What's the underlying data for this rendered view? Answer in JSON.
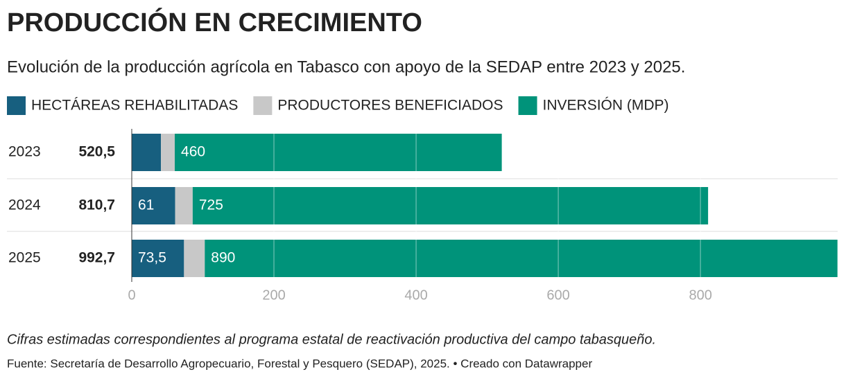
{
  "chart_data": {
    "type": "stacked-bar-horizontal",
    "title": "PRODUCCIÓN EN CRECIMIENTO",
    "subtitle": "Evolución de la producción agrícola en Tabasco con apoyo de la SEDAP entre 2023 y 2025.",
    "categories": [
      "2023",
      "2024",
      "2025"
    ],
    "totals": {
      "values": [
        520.5,
        810.7,
        992.7
      ],
      "value_labels": [
        "520,5",
        "810,7",
        "992,7"
      ]
    },
    "series": [
      {
        "name": "HECTÁREAS REHABILITADAS",
        "color": "#175f7f",
        "values": [
          41,
          61,
          73.5
        ],
        "value_labels": [
          null,
          "61",
          "73,5"
        ]
      },
      {
        "name": "PRODUCTORES BENEFICIADOS",
        "color": "#c8c8c8",
        "values": [
          19.5,
          24.7,
          29.2
        ]
      },
      {
        "name": "INVERSIÓN (MDP)",
        "color": "#00937a",
        "values": [
          460,
          725,
          890
        ],
        "value_labels": [
          "460",
          "725",
          "890"
        ]
      }
    ],
    "xlim": [
      0,
      993
    ],
    "xticks": [
      0,
      200,
      400,
      600,
      800
    ],
    "grid": true,
    "note": "Cifras estimadas correspondientes al programa estatal de reactivación productiva del campo tabasqueño.",
    "source": "Fuente: Secretaría de Desarrollo Agropecuario, Forestal y Pesquero (SEDAP), 2025. • Creado con Datawrapper"
  }
}
